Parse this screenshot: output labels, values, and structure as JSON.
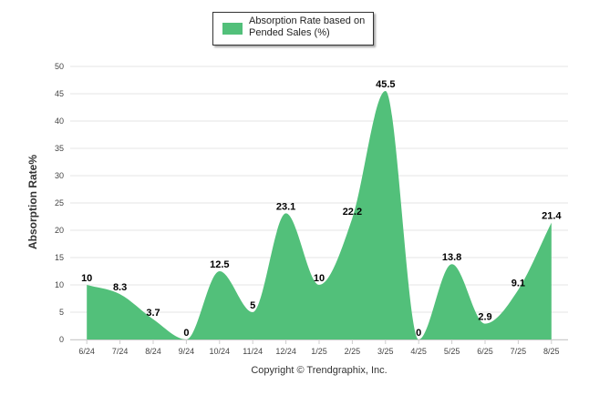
{
  "chart_data": {
    "type": "area",
    "categories": [
      "6/24",
      "7/24",
      "8/24",
      "9/24",
      "10/24",
      "11/24",
      "12/24",
      "1/25",
      "2/25",
      "3/25",
      "4/25",
      "5/25",
      "6/25",
      "7/25",
      "8/25"
    ],
    "series": [
      {
        "name": "Absorption Rate based on Pended Sales (%)",
        "values": [
          10,
          8.3,
          3.7,
          0,
          12.5,
          5,
          23.1,
          10,
          22.2,
          45.5,
          0,
          13.8,
          2.9,
          9.1,
          21.4
        ],
        "color": "#52c07a"
      }
    ],
    "data_labels": [
      "10",
      "8.3",
      "3.7",
      "0",
      "12.5",
      "5",
      "23.1",
      "10",
      "22.2",
      "45.5",
      "0",
      "13.8",
      "2.9",
      "9.1",
      "21.4"
    ],
    "xlabel": "",
    "ylabel": "Absorption Rate%",
    "ylim": [
      0,
      50
    ],
    "yticks": [
      0,
      5,
      10,
      15,
      20,
      25,
      30,
      35,
      40,
      45,
      50
    ],
    "grid": true,
    "legend_position": "top-center"
  },
  "legend": {
    "label": "Absorption Rate based on Pended Sales (%)"
  },
  "copyright": "Copyright © Trendgraphix, Inc."
}
